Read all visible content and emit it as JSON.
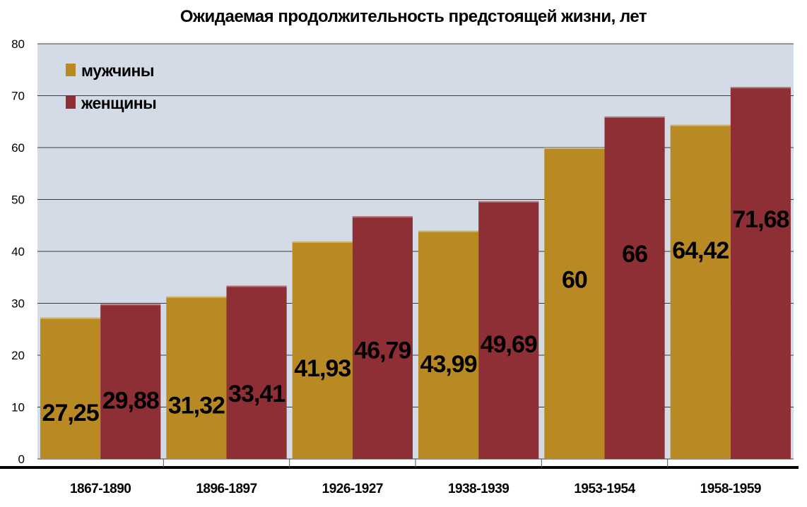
{
  "chart_data": {
    "type": "bar",
    "title": "Ожидаемая продолжительность предстоящей жизни, лет",
    "categories": [
      "1867-1890",
      "1896-1897",
      "1926-1927",
      "1938-1939",
      "1953-1954",
      "1958-1959"
    ],
    "series": [
      {
        "name": "мужчины",
        "color": "#B98A24",
        "values": [
          27.25,
          31.32,
          41.93,
          43.99,
          60,
          64.42
        ],
        "labels": [
          "27,25",
          "31,32",
          "41,93",
          "43,99",
          "60",
          "64,42"
        ]
      },
      {
        "name": "женщины",
        "color": "#8E2F36",
        "values": [
          29.88,
          33.41,
          46.79,
          49.69,
          66,
          71.68
        ],
        "labels": [
          "29,88",
          "33,41",
          "46,79",
          "49,69",
          "66",
          "71,68"
        ]
      }
    ],
    "yticks": [
      "0",
      "10",
      "20",
      "30",
      "40",
      "50",
      "60",
      "70",
      "80"
    ],
    "ylim": [
      0,
      80
    ],
    "grid": true,
    "legend_position": "top-left",
    "plot_background": "#D3DCE6"
  }
}
